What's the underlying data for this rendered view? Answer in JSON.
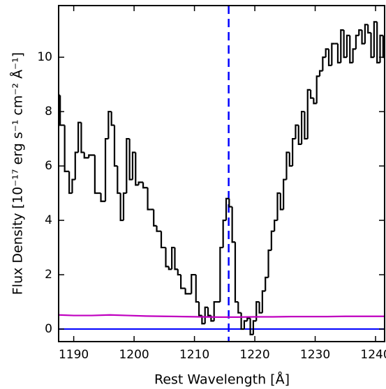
{
  "chart_data": {
    "type": "step",
    "x_label": "Rest Wavelength [Å]",
    "y_label": "Flux Density [10⁻¹⁷ erg s⁻¹ cm⁻² Å⁻¹]",
    "xlim": [
      1187.5,
      1241.5
    ],
    "ylim": [
      -0.46,
      11.9
    ],
    "xticks": [
      1190,
      1200,
      1210,
      1220,
      1230,
      1240
    ],
    "yticks": [
      0,
      2,
      4,
      6,
      8,
      10
    ],
    "series": [
      {
        "color": "#000000",
        "x": [
          1187.5,
          1188,
          1189,
          1189.5,
          1190,
          1190.5,
          1191,
          1191.5,
          1192,
          1193,
          1194,
          1195,
          1195.5,
          1196,
          1196.5,
          1197,
          1197.5,
          1198,
          1198.5,
          1199,
          1199.5,
          1200,
          1200.5,
          1201,
          1202,
          1202.5,
          1203,
          1203.5,
          1204,
          1205,
          1205.5,
          1206,
          1206.5,
          1207,
          1207.5,
          1208,
          1209,
          1210,
          1210.5,
          1211,
          1211.5,
          1212,
          1212.5,
          1213,
          1213.5,
          1214,
          1214.5,
          1215,
          1215.5,
          1216,
          1216.5,
          1217,
          1217.5,
          1218,
          1218.5,
          1219,
          1219.5,
          1220,
          1220.5,
          1221,
          1221.5,
          1222,
          1222.5,
          1223,
          1223.5,
          1224,
          1224.5,
          1225,
          1225.5,
          1226,
          1226.5,
          1227,
          1227.5,
          1228,
          1228.5,
          1229,
          1229.5,
          1230,
          1230.5,
          1231,
          1231.5,
          1232,
          1232.5,
          1233,
          1233.5,
          1234,
          1234.5,
          1235,
          1235.5,
          1236,
          1236.5,
          1237,
          1237.5,
          1238,
          1238.5,
          1239,
          1239.5,
          1240,
          1240.5,
          1241,
          1241.5
        ],
        "values": [
          8.6,
          7.5,
          5.8,
          5.0,
          5.5,
          6.5,
          7.6,
          6.5,
          6.3,
          6.4,
          5.0,
          4.7,
          7.0,
          8.0,
          7.5,
          6.0,
          5.0,
          4.0,
          5.0,
          7.0,
          5.5,
          6.5,
          5.3,
          5.4,
          5.2,
          4.4,
          4.4,
          3.8,
          3.6,
          3.0,
          2.3,
          2.2,
          3.0,
          2.2,
          2.0,
          1.5,
          1.3,
          2.0,
          1.0,
          0.5,
          0.2,
          0.8,
          0.5,
          0.3,
          1.0,
          1.0,
          3.0,
          4.0,
          4.8,
          4.5,
          3.2,
          1.0,
          0.6,
          0.0,
          0.3,
          0.4,
          -0.2,
          0.3,
          1.0,
          0.6,
          1.4,
          1.9,
          2.9,
          3.6,
          4.0,
          5.0,
          4.4,
          5.5,
          6.5,
          6.0,
          7.0,
          7.5,
          6.8,
          8.0,
          7.0,
          8.8,
          8.5,
          8.3,
          9.3,
          9.5,
          10.0,
          10.3,
          9.7,
          10.5,
          10.5,
          9.8,
          11.0,
          10.0,
          10.8,
          9.8,
          10.3,
          10.8,
          11.0,
          10.5,
          11.2,
          10.9,
          10.0,
          11.3,
          9.8,
          10.8,
          10.0
        ]
      },
      {
        "color": "#c000c0",
        "x": [
          1187.5,
          1190,
          1193,
          1196,
          1199,
          1202,
          1205,
          1208,
          1211,
          1214,
          1217,
          1220,
          1223,
          1226,
          1229,
          1232,
          1235,
          1238,
          1241.5
        ],
        "values": [
          0.52,
          0.5,
          0.5,
          0.52,
          0.5,
          0.48,
          0.47,
          0.46,
          0.45,
          0.44,
          0.44,
          0.45,
          0.45,
          0.46,
          0.46,
          0.46,
          0.47,
          0.47,
          0.47
        ]
      }
    ],
    "reference_lines": [
      {
        "axis": "y",
        "value": 0,
        "color": "#0000ff",
        "style": "solid"
      },
      {
        "axis": "x",
        "value": 1215.67,
        "color": "#0000ff",
        "style": "dashed"
      }
    ]
  }
}
